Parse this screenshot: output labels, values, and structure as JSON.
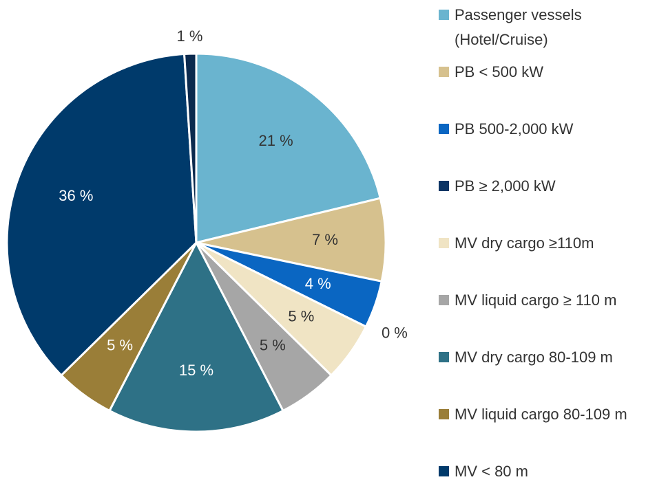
{
  "chart_data": {
    "type": "pie",
    "categories": [
      "Passenger vessels (Hotel/Cruise)",
      "PB < 500 kW",
      "PB 500-2,000 kW",
      "PB ≥ 2,000 kW",
      "MV dry cargo ≥110m",
      "MV liquid cargo ≥ 110 m",
      "MV dry cargo 80-109 m",
      "MV liquid cargo 80-109 m",
      "MV < 80 m",
      null
    ],
    "values": [
      21,
      7,
      4,
      0,
      5,
      5,
      15,
      5,
      36,
      1
    ],
    "value_labels": [
      "21 %",
      "7 %",
      "4 %",
      "0 %",
      "5 %",
      "5 %",
      "15 %",
      "5 %",
      "36 %",
      "1 %"
    ],
    "colors": [
      "#6ab4cf",
      "#d6c18e",
      "#0a66c2",
      "#0d3565",
      "#f0e4c4",
      "#a6a6a6",
      "#2e7186",
      "#9a7e38",
      "#003a6b",
      "#0b2a4e"
    ],
    "legend": "right"
  }
}
